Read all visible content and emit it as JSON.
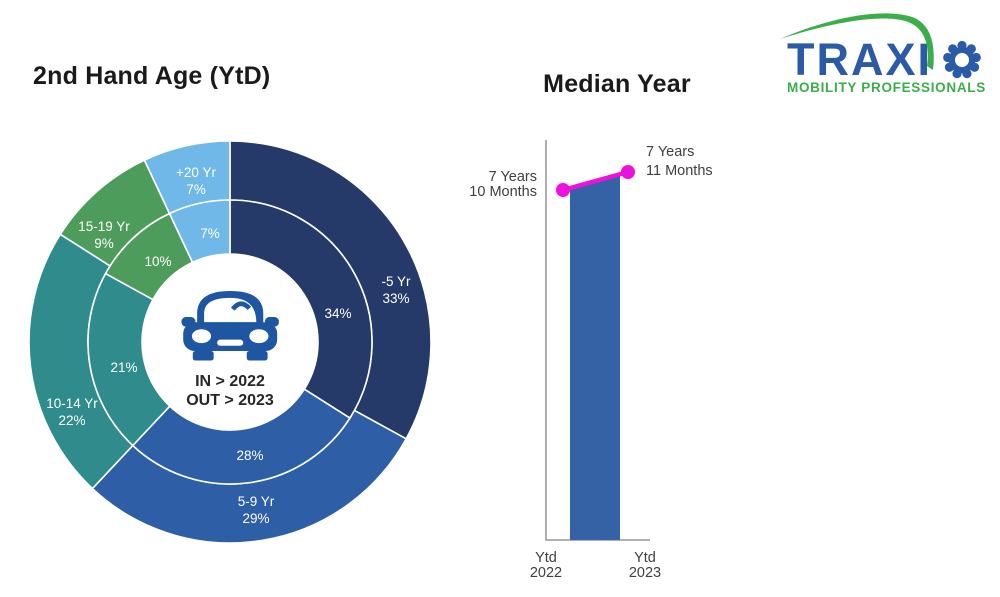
{
  "logo": {
    "brand_text": "TRAXI",
    "brand_o_icon": "gear",
    "tagline": "MOBILITY PROFESSIONALS",
    "blue": "#2b5ba6",
    "green": "#3cae49"
  },
  "chart_data": [
    {
      "id": "second-hand-age",
      "type": "pie",
      "variant": "double-ring-donut",
      "title": "2nd Hand Age (YtD)",
      "unit": "%",
      "direction": "clockwise",
      "start_angle_deg": 0,
      "categories": [
        "-5 Yr",
        "5-9 Yr",
        "10-14 Yr",
        "15-19 Yr",
        "+20 Yr"
      ],
      "colors": [
        "#253a68",
        "#2e5fa6",
        "#2f8b8c",
        "#4e9c5c",
        "#6fb8e7"
      ],
      "series": [
        {
          "name": "OUT > 2023",
          "ring": "outer",
          "values": [
            33,
            29,
            22,
            9,
            7
          ]
        },
        {
          "name": "IN > 2022",
          "ring": "inner",
          "values": [
            34,
            28,
            21,
            10,
            7
          ]
        }
      ],
      "center_icon": "car-front-icon",
      "center_lines": [
        "IN > 2022",
        "OUT > 2023"
      ],
      "label_color": "#ffffff"
    },
    {
      "id": "median-year",
      "type": "bar",
      "variant": "column-with-line-markers",
      "title": "Median Year",
      "categories": [
        [
          "Ytd",
          "2022"
        ],
        [
          "Ytd",
          "2023"
        ]
      ],
      "points": [
        {
          "category": "Ytd 2022",
          "label_lines": [
            "7 Years",
            "10 Months"
          ],
          "value_months": 94
        },
        {
          "category": "Ytd 2023",
          "label_lines": [
            "7 Years",
            "11 Months"
          ],
          "value_months": 95
        }
      ],
      "bar_color": "#3561a5",
      "line_color": "#ee10dc",
      "axis_color": "#a6a6a6",
      "label_color": "#3f3f3f"
    }
  ]
}
